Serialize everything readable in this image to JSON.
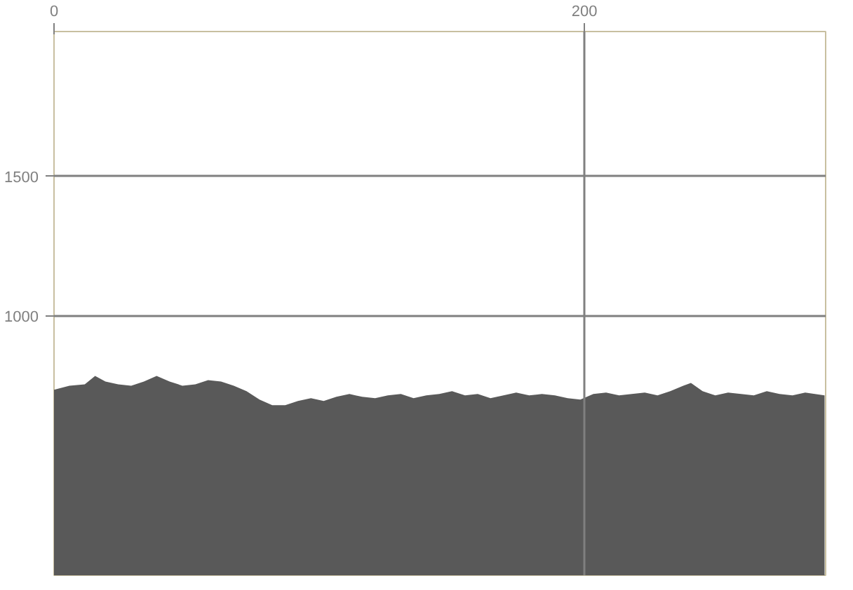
{
  "chart_data": {
    "type": "area",
    "grid": true,
    "xlim": [
      0,
      291
    ],
    "xticks": [
      0,
      200
    ],
    "ylim": [
      70,
      2020
    ],
    "yticks": [
      1000,
      1500
    ],
    "x": [
      0,
      5.8,
      11.6,
      15.5,
      19.4,
      24.2,
      29.1,
      33.9,
      38.7,
      43.6,
      48.4,
      53.3,
      58.1,
      63,
      67.8,
      72.6,
      77.5,
      82.3,
      87.2,
      92,
      96.9,
      101.7,
      106.5,
      111.4,
      116.2,
      121.1,
      125.9,
      130.8,
      135.6,
      140.4,
      145.3,
      150.1,
      155,
      159.8,
      164.6,
      169.5,
      174.3,
      179.2,
      184,
      188.9,
      193.7,
      198.5,
      203.4,
      208.2,
      213.1,
      217.9,
      222.8,
      227.6,
      232.4,
      237.3,
      240.2,
      244.6,
      249.4,
      254.2,
      259.1,
      263.9,
      268.8,
      273.6,
      278.5,
      283.3,
      290.6
    ],
    "series": [
      {
        "color": "#595959",
        "values": [
          735,
          750,
          755,
          785,
          765,
          755,
          750,
          765,
          785,
          765,
          750,
          755,
          770,
          765,
          750,
          730,
          700,
          680,
          680,
          695,
          705,
          695,
          710,
          720,
          710,
          705,
          715,
          720,
          705,
          715,
          720,
          730,
          715,
          720,
          705,
          715,
          725,
          715,
          720,
          715,
          705,
          700,
          720,
          725,
          715,
          720,
          725,
          715,
          730,
          750,
          760,
          730,
          715,
          725,
          720,
          715,
          730,
          720,
          715,
          725,
          715
        ]
      }
    ]
  }
}
